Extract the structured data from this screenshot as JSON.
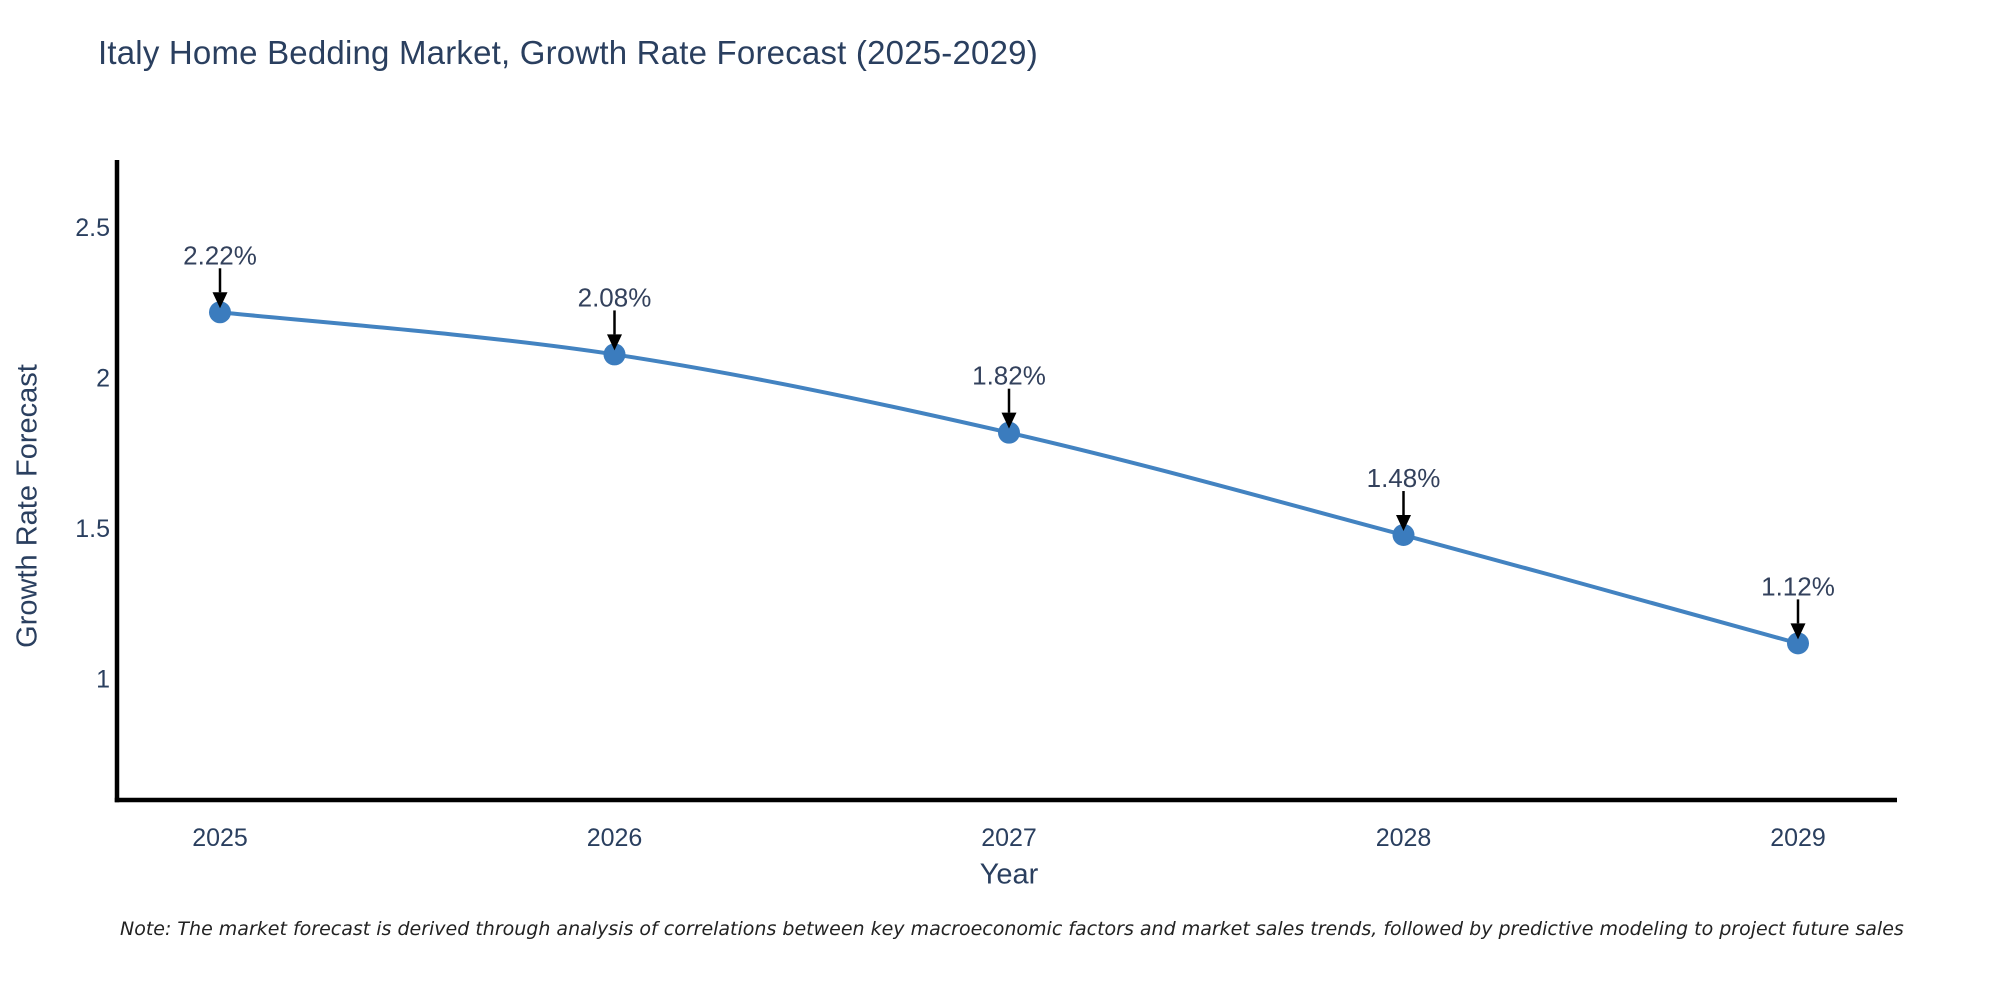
{
  "chart_data": {
    "type": "line",
    "title": "Italy Home Bedding Market, Growth Rate Forecast (2025-2029)",
    "xlabel": "Year",
    "ylabel": "Growth Rate Forecast",
    "categories": [
      "2025",
      "2026",
      "2027",
      "2028",
      "2029"
    ],
    "values": [
      2.22,
      2.08,
      1.82,
      1.48,
      1.12
    ],
    "point_labels": [
      "2.22%",
      "2.08%",
      "1.82%",
      "1.48%",
      "1.12%"
    ],
    "yticks": [
      2.5,
      2,
      1.5,
      1
    ],
    "ylim": [
      0.6,
      2.73
    ],
    "grid": false,
    "legend": "none",
    "line_shape": "spline",
    "annotation_style": "label above each point with black arrow pointing down to marker"
  },
  "note": "Note: The market forecast is derived through analysis of correlations between key macroeconomic factors and market sales trends, followed by predictive modeling to project future sales",
  "colors": {
    "line": "#4383c1",
    "marker": "#3b7cbe",
    "title_text": "#2a3f5f",
    "tick_text": "#2a3f5f",
    "axis_label_text": "#2a3f5f",
    "annotation_text": "#33415c",
    "axis_line": "#000000",
    "arrow": "#000000",
    "note_text": "#222222",
    "background": "#ffffff"
  }
}
